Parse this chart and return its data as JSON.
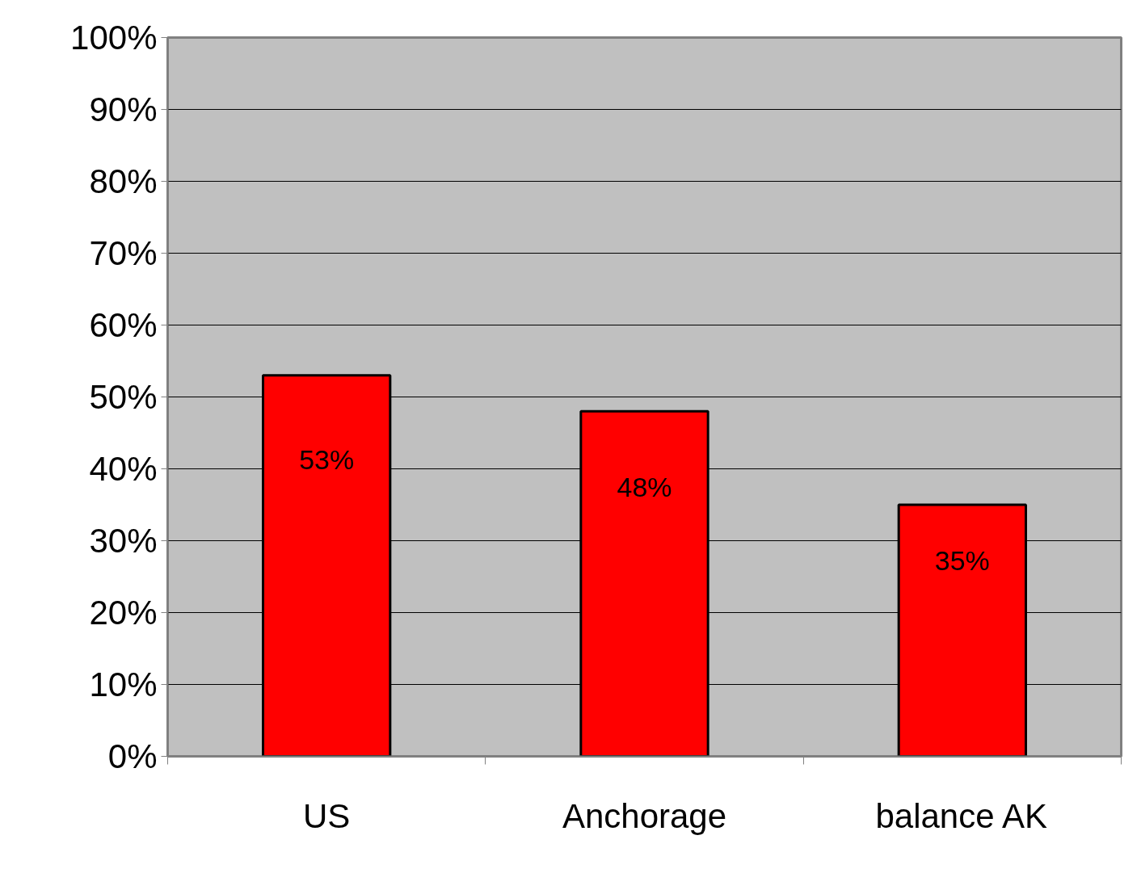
{
  "chart_data": {
    "type": "bar",
    "categories": [
      "US",
      "Anchorage",
      "balance AK"
    ],
    "values": [
      53,
      48,
      35
    ],
    "color": "#ff0000",
    "data_labels": true,
    "value_labels": [
      "53%",
      "48%",
      "35%"
    ],
    "ylim": [
      0,
      100
    ],
    "yticks": [
      {
        "value": 0,
        "label": "0%"
      },
      {
        "value": 10,
        "label": "10%"
      },
      {
        "value": 20,
        "label": "20%"
      },
      {
        "value": 30,
        "label": "30%"
      },
      {
        "value": 40,
        "label": "40%"
      },
      {
        "value": 50,
        "label": "50%"
      },
      {
        "value": 60,
        "label": "60%"
      },
      {
        "value": 70,
        "label": "70%"
      },
      {
        "value": 80,
        "label": "80%"
      },
      {
        "value": 90,
        "label": "90%"
      },
      {
        "value": 100,
        "label": "100%"
      }
    ],
    "grid": "y"
  }
}
